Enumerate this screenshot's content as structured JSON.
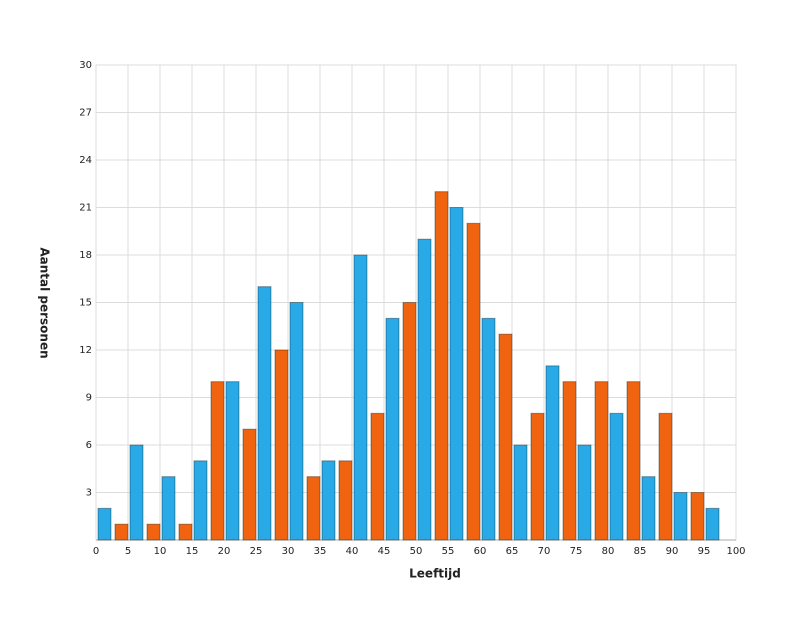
{
  "chart_data": {
    "type": "histogram",
    "x_label": "Leeftijd",
    "y_label": "Aantal personen",
    "bins": [
      0,
      5,
      10,
      15,
      20,
      25,
      30,
      35,
      40,
      45,
      50,
      55,
      60,
      65,
      70,
      75,
      80,
      85,
      90,
      95,
      100
    ],
    "series": [
      {
        "color": "#29a9e6",
        "values": [
          2,
          6,
          4,
          5,
          10,
          16,
          15,
          5,
          18,
          14,
          19,
          21,
          14,
          6,
          11,
          6,
          8,
          4,
          3,
          2
        ]
      },
      {
        "color": "#f0640f",
        "values": [
          1,
          1,
          1,
          10,
          7,
          12,
          4,
          5,
          8,
          15,
          22,
          20,
          13,
          8,
          10,
          10,
          10,
          8,
          3,
          null
        ]
      }
    ],
    "xlim": [
      0,
      100
    ],
    "xticks": [
      0,
      5,
      10,
      15,
      20,
      25,
      30,
      35,
      40,
      45,
      50,
      55,
      60,
      65,
      70,
      75,
      80,
      85,
      90,
      95,
      100
    ],
    "ylim": [
      0,
      30
    ],
    "yticks": [
      3,
      6,
      9,
      12,
      15,
      18,
      21,
      24,
      27,
      30
    ],
    "grid": true
  }
}
